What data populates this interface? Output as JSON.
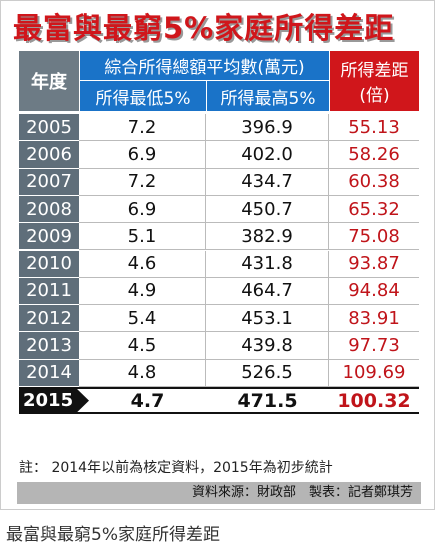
{
  "header": {
    "title": "最富與最窮5%家庭所得差距"
  },
  "table": {
    "year_header": "年度",
    "group_header": "綜合所得總額平均數(萬元)",
    "low_header": "所得最低5%",
    "high_header": "所得最高5%",
    "ratio_header": [
      "所得差距",
      "(倍)"
    ],
    "rows": [
      [
        "2005",
        "7.2",
        "396.9",
        "55.13"
      ],
      [
        "2006",
        "6.9",
        "402.0",
        "58.26"
      ],
      [
        "2007",
        "7.2",
        "434.7",
        "60.38"
      ],
      [
        "2008",
        "6.9",
        "450.7",
        "65.32"
      ],
      [
        "2009",
        "5.1",
        "382.9",
        "75.08"
      ],
      [
        "2010",
        "4.6",
        "431.8",
        "93.87"
      ],
      [
        "2011",
        "4.9",
        "464.7",
        "94.84"
      ],
      [
        "2012",
        "5.4",
        "453.1",
        "83.91"
      ],
      [
        "2013",
        "4.5",
        "439.8",
        "97.73"
      ],
      [
        "2014",
        "4.8",
        "526.5",
        "109.69"
      ],
      [
        "2015",
        "4.7",
        "471.5",
        "100.32"
      ]
    ]
  },
  "footer": {
    "note": "註： 2014年以前為核定資料，2015年為初步統計",
    "source": "資料來源：財政部　製表：記者鄭琪芳"
  },
  "caption": "最富與最窮5%家庭所得差距"
}
